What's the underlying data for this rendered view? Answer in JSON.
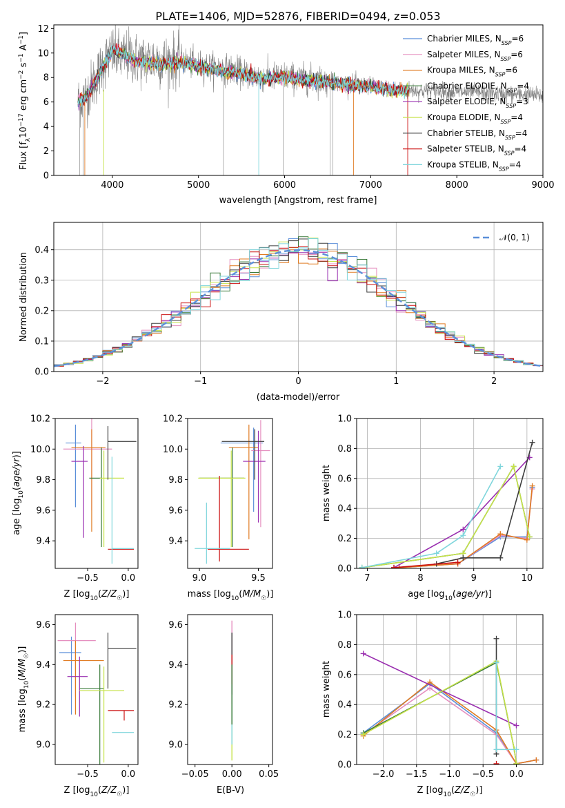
{
  "figure": {
    "title": "PLATE=1406, MJD=52876, FIBERID=0494, z=0.053"
  },
  "colors": {
    "Chabrier MILES": "#5b8fd9",
    "Salpeter MILES": "#e58fbf",
    "Kroupa MILES": "#e07b22",
    "Chabrier ELODIE": "#3a7a3a",
    "Salpeter ELODIE": "#9a2fb0",
    "Kroupa ELODIE": "#c6e24a",
    "Chabrier STELIB": "#3c3c3c",
    "Salpeter STELIB": "#cc1111",
    "Kroupa STELIB": "#7fd6dc",
    "observed": "#808080",
    "normal": "#5b8fd9"
  },
  "chart_data": [
    {
      "id": "spectrum",
      "type": "line",
      "title": "PLATE=1406, MJD=52876, FIBERID=0494, z=0.053",
      "xlabel": "wavelength [Angstrom, rest frame]",
      "ylabel": "Flux [fλ10⁻¹⁷ erg cm⁻² s⁻¹ A⁻¹]",
      "xlim": [
        3320,
        9000
      ],
      "ylim": [
        0,
        12.3
      ],
      "xticks": [
        "4000",
        "5000",
        "6000",
        "7000",
        "8000",
        "9000"
      ],
      "yticks": [
        "0",
        "2",
        "4",
        "6",
        "8",
        "10",
        "12"
      ],
      "grid": false,
      "legend_position": "top-right",
      "legend": [
        "Chabrier MILES, N_SSP=6",
        "Salpeter MILES, N_SSP=6",
        "Kroupa MILES, N_SSP=6",
        "Chabrier ELODIE, N_SSP=4",
        "Salpeter ELODIE, N_SSP=3",
        "Kroupa ELODIE, N_SSP=4",
        "Chabrier STELIB, N_SSP=4",
        "Salpeter STELIB, N_SSP=4",
        "Kroupa STELIB, N_SSP=4"
      ],
      "observed_continuum": {
        "x": [
          3600,
          3700,
          3800,
          3900,
          4000,
          4100,
          4200,
          4300,
          4400,
          4500,
          4600,
          4800,
          5000,
          5200,
          5400,
          5600,
          5800,
          6000,
          6200,
          6400,
          6600,
          6800,
          7000,
          7200,
          7400,
          7600,
          7800,
          8000,
          8200,
          8400,
          8600,
          8800,
          9000
        ],
        "y": [
          6.0,
          6.6,
          7.8,
          9.2,
          10.0,
          9.6,
          9.8,
          9.4,
          9.4,
          9.5,
          9.3,
          9.4,
          9.0,
          8.8,
          8.6,
          8.2,
          8.0,
          8.1,
          7.9,
          7.8,
          7.6,
          7.5,
          7.3,
          7.1,
          7.0,
          6.9,
          6.9,
          6.8,
          6.8,
          6.7,
          6.6,
          6.6,
          6.5
        ]
      },
      "model_continuum": {
        "x": [
          3600,
          3700,
          3800,
          3900,
          4000,
          4100,
          4200,
          4300,
          4400,
          4600,
          4800,
          5000,
          5200,
          5400,
          5600,
          5800,
          6000,
          6200,
          6400,
          6600,
          6800,
          7000,
          7200,
          7450
        ],
        "y": [
          6.0,
          6.4,
          7.6,
          9.0,
          10.2,
          10.0,
          9.6,
          9.3,
          9.2,
          9.1,
          9.2,
          8.9,
          8.6,
          8.4,
          8.1,
          7.9,
          8.1,
          7.8,
          7.7,
          7.5,
          7.4,
          7.2,
          7.0,
          6.9
        ]
      }
    },
    {
      "id": "residuals",
      "type": "histogram",
      "xlabel": "(data-model)/error",
      "ylabel": "Normed distribution",
      "xlim": [
        -2.5,
        2.5
      ],
      "ylim": [
        0,
        0.49
      ],
      "xticks": [
        "−2",
        "−1",
        "0",
        "1",
        "2"
      ],
      "yticks": [
        "0.0",
        "0.1",
        "0.2",
        "0.3",
        "0.4"
      ],
      "grid": true,
      "legend_position": "top-right",
      "legend": [
        "𝒩(0, 1)"
      ],
      "bin_width": 0.1,
      "bin_start": -2.5,
      "reference_curve": "standard normal N(0,1), dashed"
    },
    {
      "id": "age-vs-Z",
      "type": "scatter",
      "xlabel": "Z [log₁₀(Z/Z☉)]",
      "ylabel": "age  [log₁₀(age/yr)]",
      "xlim": [
        -0.9,
        0.12
      ],
      "ylim": [
        9.22,
        10.2
      ],
      "xticks": [
        "−0.5",
        "0.0"
      ],
      "yticks": [
        "9.4",
        "9.6",
        "9.8",
        "10.0",
        "10.2"
      ],
      "grid": false,
      "points": [
        {
          "model": "Chabrier MILES",
          "x": -0.65,
          "y": 10.04,
          "xerr": [
            0.12,
            0.07
          ],
          "yerr": [
            0.42,
            0.12
          ]
        },
        {
          "model": "Salpeter MILES",
          "x": -0.45,
          "y": 10.0,
          "xerr": [
            0.35,
            0.25
          ],
          "yerr": [
            0.4,
            0.2
          ]
        },
        {
          "model": "Kroupa MILES",
          "x": -0.45,
          "y": 10.01,
          "xerr": [
            0.25,
            0.17
          ],
          "yerr": [
            0.55,
            0.12
          ]
        },
        {
          "model": "Chabrier ELODIE",
          "x": -0.33,
          "y": 9.81,
          "xerr": [
            0.15,
            0.0
          ],
          "yerr": [
            0.45,
            0.2
          ]
        },
        {
          "model": "Salpeter ELODIE",
          "x": -0.55,
          "y": 9.92,
          "xerr": [
            0.15,
            0.05
          ],
          "yerr": [
            0.5,
            0.1
          ]
        },
        {
          "model": "Kroupa ELODIE",
          "x": -0.3,
          "y": 9.81,
          "xerr": [
            0.05,
            0.25
          ],
          "yerr": [
            0.45,
            0.18
          ]
        },
        {
          "model": "Chabrier STELIB",
          "x": -0.25,
          "y": 10.05,
          "xerr": [
            0.0,
            0.35
          ],
          "yerr": [
            0.25,
            0.1
          ]
        },
        {
          "model": "Salpeter STELIB",
          "x": -0.05,
          "y": 9.345,
          "xerr": [
            0.2,
            0.12
          ],
          "yerr": [
            0.0,
            0.0
          ]
        },
        {
          "model": "Kroupa STELIB",
          "x": -0.2,
          "y": 9.35,
          "xerr": [
            0.0,
            0.27
          ],
          "yerr": [
            0.1,
            0.6
          ]
        }
      ]
    },
    {
      "id": "age-vs-mass",
      "type": "scatter",
      "xlabel": "mass [log₁₀(M/M☉)]",
      "ylabel": "",
      "xlim": [
        8.9,
        9.62
      ],
      "ylim": [
        9.22,
        10.2
      ],
      "xticks": [
        "9.0",
        "9.5"
      ],
      "yticks": [
        "9.4",
        "9.6",
        "9.8",
        "10.0",
        "10.2"
      ],
      "grid": false,
      "points": [
        {
          "model": "Chabrier MILES",
          "x": 9.46,
          "y": 10.04,
          "xerr": [
            0.28,
            0.08
          ],
          "yerr": [
            0.45,
            0.1
          ]
        },
        {
          "model": "Salpeter MILES",
          "x": 9.52,
          "y": 9.99,
          "xerr": [
            0.08,
            0.08
          ],
          "yerr": [
            0.5,
            0.2
          ]
        },
        {
          "model": "Kroupa MILES",
          "x": 9.42,
          "y": 10.01,
          "xerr": [
            0.17,
            0.08
          ],
          "yerr": [
            0.6,
            0.15
          ]
        },
        {
          "model": "Chabrier ELODIE",
          "x": 9.28,
          "y": 9.81,
          "xerr": [
            0.28,
            0.1
          ],
          "yerr": [
            0.45,
            0.2
          ]
        },
        {
          "model": "Salpeter ELODIE",
          "x": 9.5,
          "y": 9.92,
          "xerr": [
            0.13,
            0.06
          ],
          "yerr": [
            0.4,
            0.2
          ]
        },
        {
          "model": "Kroupa ELODIE",
          "x": 9.27,
          "y": 9.81,
          "xerr": [
            0.28,
            0.12
          ],
          "yerr": [
            0.45,
            0.18
          ]
        },
        {
          "model": "Chabrier STELIB",
          "x": 9.47,
          "y": 10.05,
          "xerr": [
            0.28,
            0.08
          ],
          "yerr": [
            0.25,
            0.08
          ]
        },
        {
          "model": "Salpeter STELIB",
          "x": 9.17,
          "y": 9.345,
          "xerr": [
            0.1,
            0.25
          ],
          "yerr": [
            0.08,
            0.48
          ]
        },
        {
          "model": "Kroupa STELIB",
          "x": 9.06,
          "y": 9.35,
          "xerr": [
            0.1,
            0.2
          ],
          "yerr": [
            0.1,
            0.3
          ]
        }
      ]
    },
    {
      "id": "massweight-vs-age",
      "type": "line",
      "xlabel": "age  [log₁₀(age/yr)]",
      "ylabel": "mass weight",
      "xlim": [
        6.8,
        10.3
      ],
      "ylim": [
        0,
        1
      ],
      "xticks": [
        "7",
        "8",
        "9",
        "10"
      ],
      "yticks": [
        "0.0",
        "0.2",
        "0.4",
        "0.6",
        "0.8",
        "1.0"
      ],
      "grid": true,
      "series": [
        {
          "name": "Chabrier MILES",
          "x": [
            7.6,
            8.7,
            9.5,
            10.0,
            10.1
          ],
          "y": [
            0.005,
            0.03,
            0.21,
            0.21,
            0.54
          ]
        },
        {
          "name": "Salpeter MILES",
          "x": [
            7.6,
            8.7,
            9.5,
            10.0,
            10.1
          ],
          "y": [
            0.005,
            0.03,
            0.22,
            0.2,
            0.53
          ]
        },
        {
          "name": "Kroupa MILES",
          "x": [
            7.6,
            8.7,
            9.5,
            10.0,
            10.1
          ],
          "y": [
            0.005,
            0.03,
            0.23,
            0.19,
            0.55
          ]
        },
        {
          "name": "Chabrier ELODIE",
          "x": [
            6.9,
            8.8,
            9.75,
            10.05
          ],
          "y": [
            0.005,
            0.1,
            0.68,
            0.21
          ]
        },
        {
          "name": "Salpeter ELODIE",
          "x": [
            7.5,
            8.8,
            10.05
          ],
          "y": [
            0.005,
            0.26,
            0.74
          ]
        },
        {
          "name": "Kroupa ELODIE",
          "x": [
            6.9,
            8.8,
            9.75,
            10.05
          ],
          "y": [
            0.005,
            0.1,
            0.68,
            0.21
          ]
        },
        {
          "name": "Chabrier STELIB",
          "x": [
            8.3,
            8.8,
            9.5,
            10.1
          ],
          "y": [
            0.03,
            0.07,
            0.07,
            0.84
          ]
        },
        {
          "name": "Salpeter STELIB",
          "x": [
            7.5,
            8.7
          ],
          "y": [
            0.005,
            0.04
          ]
        },
        {
          "name": "Kroupa STELIB",
          "x": [
            6.9,
            8.3,
            8.8,
            9.5
          ],
          "y": [
            0.005,
            0.1,
            0.22,
            0.68
          ]
        }
      ]
    },
    {
      "id": "mass-vs-Z",
      "type": "scatter",
      "xlabel": "Z [log₁₀(Z/Z☉)]",
      "ylabel": "mass [log₁₀(M/M☉)]",
      "xlim": [
        -0.9,
        0.12
      ],
      "ylim": [
        8.9,
        9.65
      ],
      "xticks": [
        "−0.5",
        "0.0"
      ],
      "yticks": [
        "9.0",
        "9.2",
        "9.4",
        "9.6"
      ],
      "grid": false,
      "points": [
        {
          "model": "Chabrier MILES",
          "x": -0.7,
          "y": 9.46,
          "xerr": [
            0.15,
            0.12
          ],
          "yerr": [
            0.31,
            0.08
          ]
        },
        {
          "model": "Salpeter MILES",
          "x": -0.65,
          "y": 9.52,
          "xerr": [
            0.22,
            0.25
          ],
          "yerr": [
            0.28,
            0.09
          ]
        },
        {
          "model": "Kroupa MILES",
          "x": -0.65,
          "y": 9.42,
          "xerr": [
            0.15,
            0.35
          ],
          "yerr": [
            0.27,
            0.1
          ]
        },
        {
          "model": "Chabrier ELODIE",
          "x": -0.35,
          "y": 9.28,
          "xerr": [
            0.25,
            0.05
          ],
          "yerr": [
            0.38,
            0.12
          ]
        },
        {
          "model": "Salpeter ELODIE",
          "x": -0.6,
          "y": 9.34,
          "xerr": [
            0.15,
            0.1
          ],
          "yerr": [
            0.2,
            0.1
          ]
        },
        {
          "model": "Kroupa ELODIE",
          "x": -0.3,
          "y": 9.27,
          "xerr": [
            0.3,
            0.25
          ],
          "yerr": [
            0.36,
            0.12
          ]
        },
        {
          "model": "Chabrier STELIB",
          "x": -0.25,
          "y": 9.48,
          "xerr": [
            0.0,
            0.35
          ],
          "yerr": [
            0.2,
            0.08
          ]
        },
        {
          "model": "Salpeter STELIB",
          "x": -0.05,
          "y": 9.17,
          "xerr": [
            0.2,
            0.12
          ],
          "yerr": [
            0.05,
            0.0
          ]
        },
        {
          "model": "Kroupa STELIB",
          "x": -0.05,
          "y": 9.06,
          "xerr": [
            0.15,
            0.12
          ],
          "yerr": [
            0.0,
            0.0
          ]
        }
      ]
    },
    {
      "id": "mass-vs-ebv",
      "type": "scatter",
      "xlabel": "E(B-V)",
      "ylabel": "",
      "xlim": [
        -0.06,
        0.055
      ],
      "ylim": [
        8.9,
        9.65
      ],
      "xticks": [
        "−0.05",
        "0.00",
        "0.05"
      ],
      "yticks": [
        "9.0",
        "9.2",
        "9.4",
        "9.6"
      ],
      "grid": false,
      "points": [
        {
          "model": "all models",
          "x": 0.0,
          "y": 9.3,
          "yerr": [
            0.4,
            0.33
          ]
        }
      ]
    },
    {
      "id": "massweight-vs-Z",
      "type": "line",
      "xlabel": "Z [log₁₀(Z/Z☉)]",
      "ylabel": "mass weight",
      "xlim": [
        -2.4,
        0.4
      ],
      "ylim": [
        0,
        1
      ],
      "xticks": [
        "−2.0",
        "−1.5",
        "−1.0",
        "−0.5",
        "0.0"
      ],
      "yticks": [
        "0.0",
        "0.2",
        "0.4",
        "0.6",
        "0.8",
        "1.0"
      ],
      "grid": true,
      "series": [
        {
          "name": "Chabrier MILES",
          "x": [
            -2.3,
            -1.3,
            -0.3,
            0.0,
            0.3
          ],
          "y": [
            0.21,
            0.54,
            0.21,
            0.005,
            0.03
          ]
        },
        {
          "name": "Salpeter MILES",
          "x": [
            -2.3,
            -1.3,
            -0.3,
            0.0,
            0.3
          ],
          "y": [
            0.2,
            0.51,
            0.2,
            0.005,
            0.03
          ]
        },
        {
          "name": "Kroupa MILES",
          "x": [
            -2.3,
            -1.3,
            -0.3,
            0.0,
            0.3
          ],
          "y": [
            0.19,
            0.55,
            0.23,
            0.005,
            0.03
          ]
        },
        {
          "name": "Chabrier ELODIE",
          "x": [
            -2.3,
            -0.3,
            -0.03,
            0.0
          ],
          "y": [
            0.21,
            0.68,
            0.1,
            0.005
          ]
        },
        {
          "name": "Salpeter ELODIE",
          "x": [
            -2.3,
            0.0
          ],
          "y": [
            0.74,
            0.26
          ]
        },
        {
          "name": "Kroupa ELODIE",
          "x": [
            -2.3,
            -0.3,
            -0.03,
            0.0
          ],
          "y": [
            0.2,
            0.69,
            0.1,
            0.005
          ]
        },
        {
          "name": "Chabrier STELIB",
          "x": [
            -0.3,
            -0.3
          ],
          "y": [
            0.84,
            0.07
          ]
        },
        {
          "name": "Salpeter STELIB",
          "x": [
            -0.3
          ],
          "y": [
            0.005
          ]
        },
        {
          "name": "Kroupa STELIB",
          "x": [
            -0.3,
            -0.3,
            0.0
          ],
          "y": [
            0.68,
            0.1,
            0.1
          ]
        }
      ]
    }
  ]
}
